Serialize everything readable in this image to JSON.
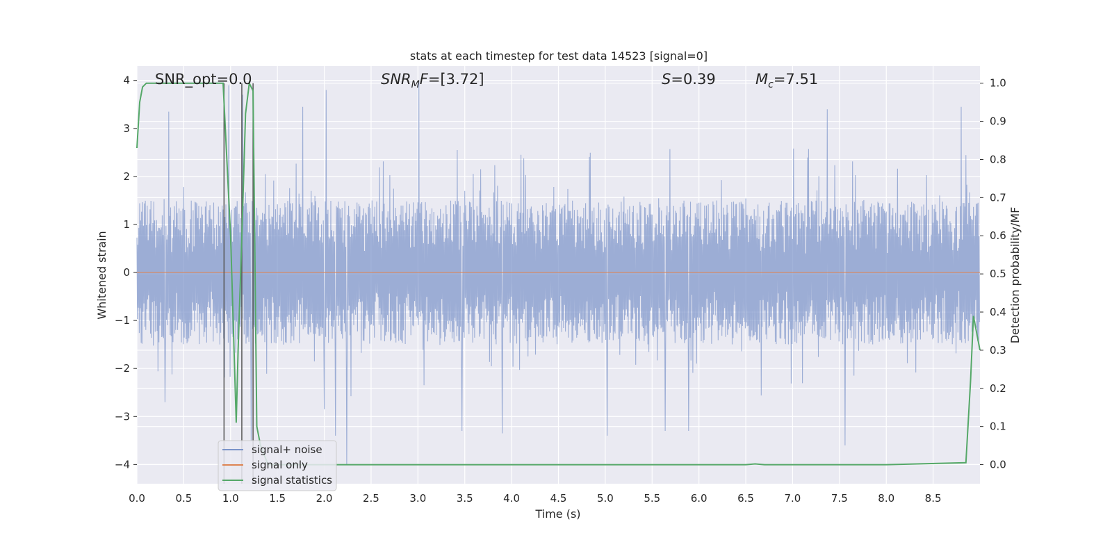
{
  "chart_data": {
    "type": "line",
    "title": "stats at each timestep for test data 14523 [signal=0]",
    "xlabel": "Time (s)",
    "ylabel": "Whitened strain",
    "y2label": "Detection probability/MF",
    "xlim": [
      0.0,
      9.0
    ],
    "ylim": [
      -4.4,
      4.3
    ],
    "y2lim": [
      -0.05,
      1.045
    ],
    "grid": true,
    "x_ticks": [
      "0.0",
      "0.5",
      "1.0",
      "1.5",
      "2.0",
      "2.5",
      "3.0",
      "3.5",
      "4.0",
      "4.5",
      "5.0",
      "5.5",
      "6.0",
      "6.5",
      "7.0",
      "7.5",
      "8.0",
      "8.5"
    ],
    "y_ticks": [
      "−4",
      "−3",
      "−2",
      "−1",
      "0",
      "1",
      "2",
      "3",
      "4"
    ],
    "y2_ticks": [
      "0.0",
      "0.1",
      "0.2",
      "0.3",
      "0.4",
      "0.5",
      "0.6",
      "0.7",
      "0.8",
      "0.9",
      "1.0"
    ],
    "annotations": {
      "snr_opt": "SNR_opt=0.0",
      "snr_mf": "=[3.72]",
      "snr_mf_base": "SNR",
      "snr_mf_sub": "M",
      "snr_mf_F": "F",
      "s_stat": "=0.39",
      "s_stat_sym": "S",
      "mc": "=7.51",
      "mc_sym": "M",
      "mc_sub": "c"
    },
    "legend": {
      "placement": "lower-left",
      "entries": [
        "signal+ noise",
        "signal only",
        "signal statistics"
      ]
    },
    "colors": {
      "noise": "#7a93c9",
      "signal_only": "#dd8452",
      "statistics": "#55a868",
      "vlines": "#555555",
      "axes_bg": "#eaeaf2"
    },
    "series": [
      {
        "name": "signal+ noise",
        "type": "noise_band",
        "sample_rate_hz": 200,
        "envelope_typical": 1.5,
        "notable_peaks": [
          [
            0.34,
            3.35
          ],
          [
            0.98,
            3.9
          ],
          [
            1.13,
            3.7
          ],
          [
            1.77,
            3.45
          ],
          [
            2.02,
            3.8
          ],
          [
            3.01,
            4.0
          ],
          [
            7.37,
            3.4
          ],
          [
            8.8,
            3.45
          ],
          [
            0.3,
            -2.7
          ],
          [
            1.22,
            -3.5
          ],
          [
            2.0,
            -2.85
          ],
          [
            2.12,
            -3.4
          ],
          [
            2.24,
            -4.0
          ],
          [
            3.47,
            -3.3
          ],
          [
            3.9,
            -3.35
          ],
          [
            5.02,
            -3.4
          ],
          [
            5.64,
            -3.3
          ],
          [
            5.89,
            -3.3
          ],
          [
            7.56,
            -3.6
          ]
        ]
      },
      {
        "name": "signal only",
        "x": [
          0.0,
          9.0
        ],
        "y": [
          0.0,
          0.0
        ]
      },
      {
        "name": "signal statistics",
        "axis": "right",
        "x": [
          0.0,
          0.03,
          0.06,
          0.1,
          0.2,
          0.4,
          0.6,
          0.8,
          0.92,
          0.96,
          1.0,
          1.06,
          1.08,
          1.12,
          1.16,
          1.2,
          1.24,
          1.28,
          1.32,
          1.4,
          1.5,
          2.0,
          3.0,
          4.0,
          5.0,
          6.0,
          6.5,
          6.6,
          6.7,
          7.0,
          8.0,
          8.85,
          8.9,
          8.93,
          9.0
        ],
        "y": [
          0.83,
          0.95,
          0.99,
          1.0,
          1.0,
          1.0,
          1.0,
          1.0,
          1.0,
          0.8,
          0.6,
          0.11,
          0.3,
          0.6,
          0.92,
          1.0,
          0.98,
          0.1,
          0.05,
          0.0,
          0.0,
          0.0,
          0.0,
          0.0,
          0.0,
          0.0,
          0.0,
          0.002,
          0.0,
          0.0,
          0.0,
          0.005,
          0.22,
          0.39,
          0.3
        ]
      }
    ],
    "vlines": [
      0.93,
      1.12,
      1.24
    ]
  }
}
